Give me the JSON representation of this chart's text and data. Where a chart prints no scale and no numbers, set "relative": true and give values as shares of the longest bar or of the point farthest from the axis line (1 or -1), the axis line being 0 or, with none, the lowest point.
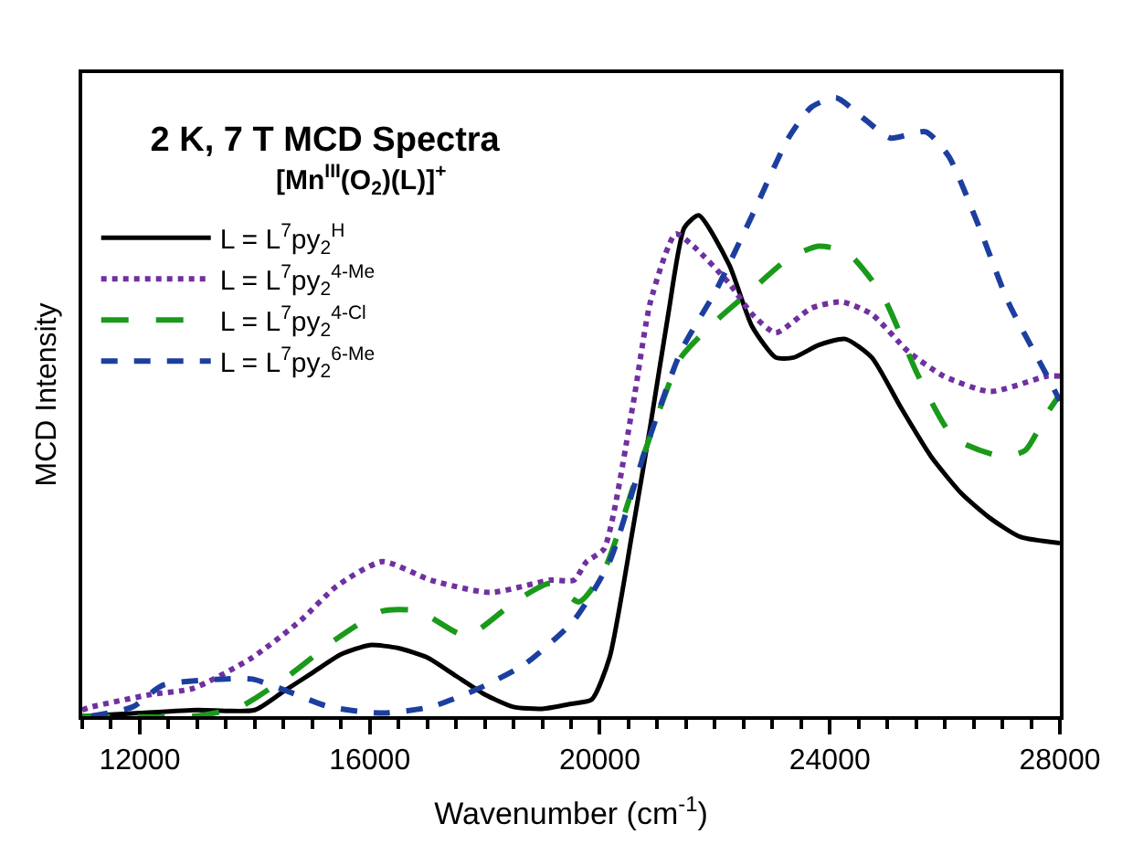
{
  "chart_data": {
    "type": "line",
    "title": "2 K, 7 T MCD Spectra",
    "subtitle": "[Mn$^{III}$(O$_{2}$)(L)]$^{+}$",
    "xlabel": "Wavenumber (cm$^{-1}$)",
    "ylabel": "MCD Intensity",
    "relative": true,
    "xlim": [
      11000,
      28000
    ],
    "xticks": [
      12000,
      16000,
      20000,
      24000,
      28000
    ],
    "legend": "top left",
    "series": [
      {
        "name": "L = L$^{7}$py$_{2}$$^{H}$",
        "color": "#000000",
        "line_style": "solid",
        "x": [
          11000,
          12000,
          13000,
          14000,
          14500,
          15000,
          15500,
          16000,
          16500,
          17000,
          17500,
          18000,
          18500,
          19000,
          19500,
          19860,
          20170,
          20570,
          20880,
          21190,
          21470,
          21720,
          22250,
          22650,
          23060,
          23370,
          23800,
          24270,
          24730,
          25230,
          25760,
          26290,
          26790,
          27310,
          28000
        ],
        "values": [
          0,
          0.005,
          0.01,
          0.01,
          0.04,
          0.07,
          0.1,
          0.115,
          0.11,
          0.095,
          0.065,
          0.035,
          0.015,
          0.012,
          0.02,
          0.027,
          0.095,
          0.3,
          0.47,
          0.65,
          0.79,
          0.81,
          0.73,
          0.63,
          0.58,
          0.58,
          0.6,
          0.61,
          0.58,
          0.5,
          0.42,
          0.36,
          0.32,
          0.29,
          0.28
        ]
      },
      {
        "name": "L = L$^{7}$py$_{2}$$^{4-Me}$",
        "color": "#7030a0",
        "line_style": "dotted",
        "x": [
          11000,
          11160,
          12190,
          12930,
          13960,
          14800,
          15420,
          16220,
          17060,
          18090,
          19140,
          19550,
          19770,
          20070,
          20570,
          20880,
          21320,
          21630,
          22250,
          22650,
          23060,
          23680,
          24210,
          24730,
          25360,
          25980,
          26790,
          27780,
          28000
        ],
        "values": [
          0.01,
          0.015,
          0.035,
          0.045,
          0.095,
          0.155,
          0.21,
          0.25,
          0.22,
          0.2,
          0.22,
          0.22,
          0.25,
          0.27,
          0.5,
          0.67,
          0.78,
          0.76,
          0.7,
          0.65,
          0.62,
          0.66,
          0.67,
          0.65,
          0.59,
          0.55,
          0.525,
          0.55,
          0.55
        ]
      },
      {
        "name": "L = L$^{7}$py$_{2}$$^{4-Cl}$",
        "color": "#1a9a1a",
        "line_style": "dashed",
        "x": [
          11000,
          12930,
          13740,
          14580,
          15420,
          16220,
          16850,
          17680,
          18520,
          19140,
          19640,
          20070,
          20790,
          21410,
          22030,
          22650,
          23280,
          23800,
          24300,
          24920,
          25540,
          26160,
          27000,
          27400,
          27780,
          28000
        ],
        "values": [
          0,
          0,
          0.015,
          0.065,
          0.125,
          0.17,
          0.17,
          0.13,
          0.185,
          0.215,
          0.185,
          0.235,
          0.43,
          0.58,
          0.64,
          0.69,
          0.74,
          0.76,
          0.75,
          0.68,
          0.55,
          0.45,
          0.42,
          0.43,
          0.49,
          0.52
        ]
      },
      {
        "name": "L = L$^{7}$py$_{2}$$^{6-Me}$",
        "color": "#1c3f9f",
        "line_style": "dashed",
        "x": [
          11160,
          11880,
          12400,
          13430,
          13960,
          14580,
          15300,
          16220,
          17060,
          17900,
          18710,
          19550,
          20170,
          20790,
          21410,
          22030,
          22650,
          23280,
          23680,
          24110,
          24610,
          25050,
          25670,
          26070,
          26600,
          27100,
          27780,
          28000
        ],
        "values": [
          0,
          0.015,
          0.05,
          0.06,
          0.06,
          0.04,
          0.015,
          0.005,
          0.015,
          0.045,
          0.085,
          0.155,
          0.25,
          0.43,
          0.59,
          0.69,
          0.81,
          0.935,
          0.985,
          1,
          0.965,
          0.935,
          0.945,
          0.905,
          0.79,
          0.67,
          0.55,
          0.51
        ]
      }
    ]
  }
}
